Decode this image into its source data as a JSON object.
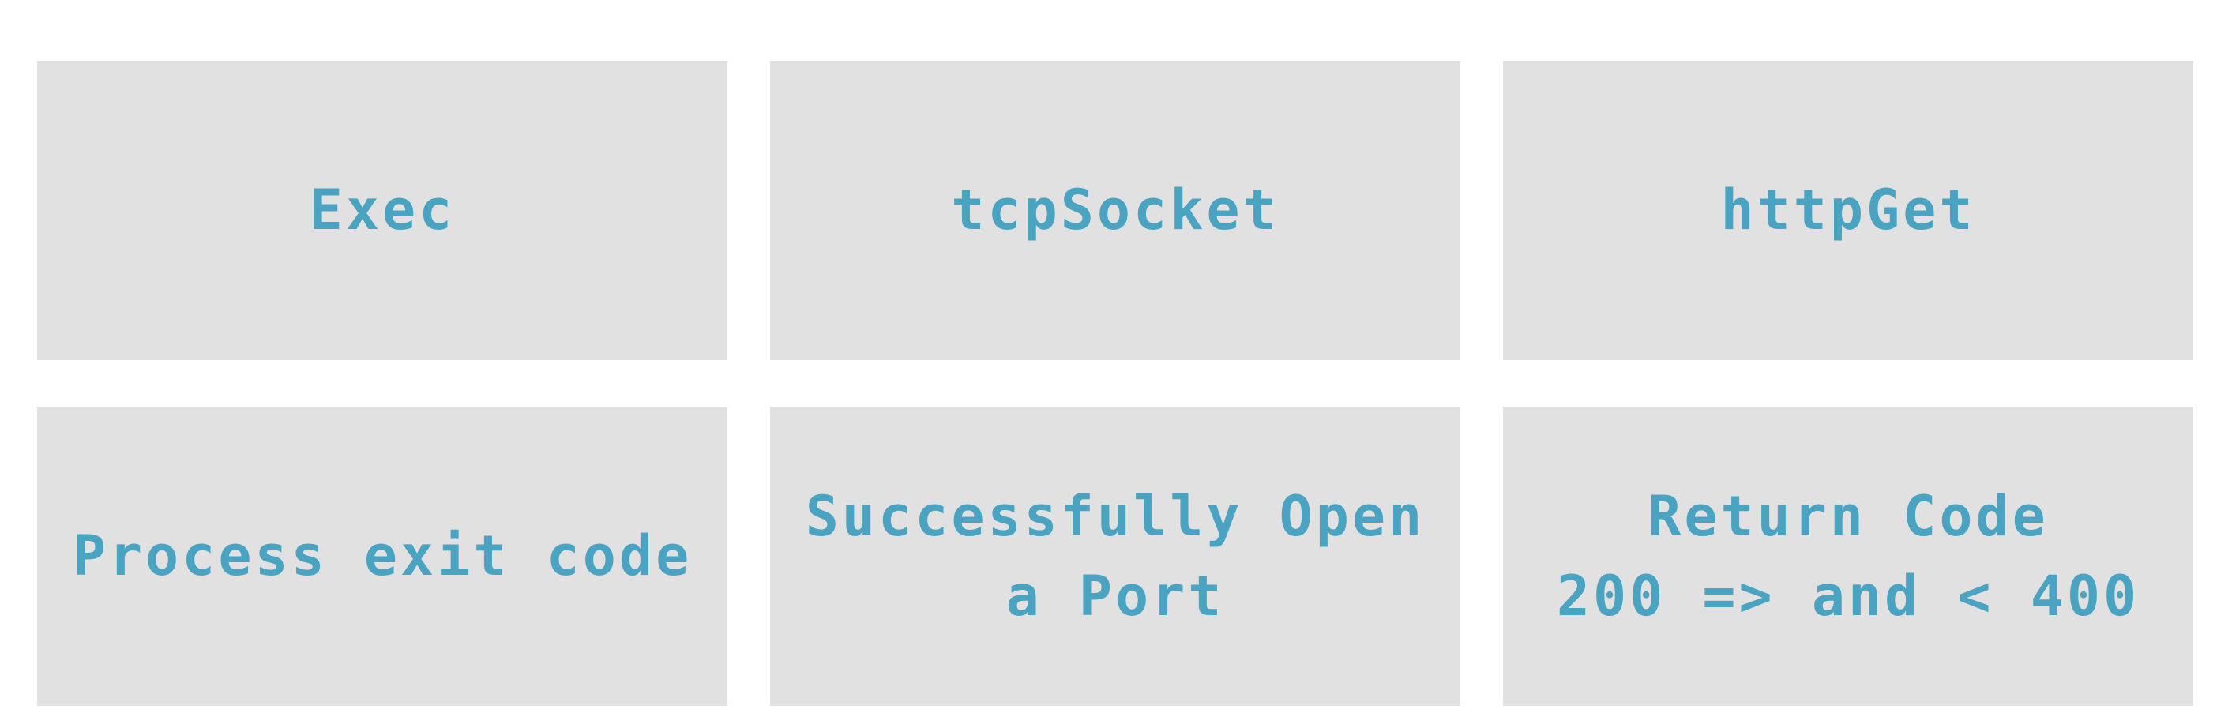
{
  "colors": {
    "tile_background": "#e1e1e1",
    "text": "#4aa3c1",
    "page_background": "#ffffff"
  },
  "probes": [
    {
      "name": "Exec",
      "description": [
        "Process exit code"
      ]
    },
    {
      "name": "tcpSocket",
      "description": [
        "Successfully Open",
        "a Port"
      ]
    },
    {
      "name": "httpGet",
      "description": [
        "Return Code",
        "200 => and < 400"
      ]
    }
  ]
}
